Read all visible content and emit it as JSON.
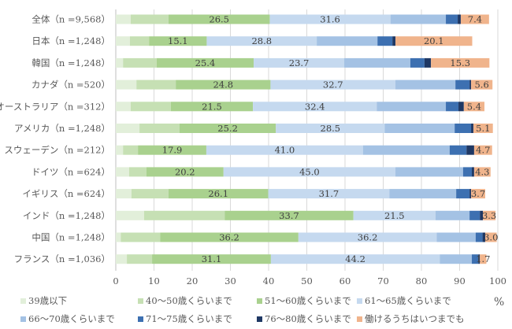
{
  "chart_data": {
    "type": "bar",
    "orientation": "horizontal",
    "stacked": true,
    "title": "",
    "xlabel": "",
    "unit_label": "%",
    "xlim": [
      0,
      100
    ],
    "x_ticks": [
      "0",
      "10",
      "20",
      "30",
      "40",
      "50",
      "60",
      "70",
      "80",
      "90",
      "100"
    ],
    "grid": true,
    "legend_position": "bottom",
    "categories": [
      "全体（n =9,568）",
      "日本（n =1,248）",
      "韓国（n =1,248）",
      "カナダ（n =520）",
      "オーストラリア（n =312）",
      "アメリカ（n =1,248）",
      "スウェーデン（n =212）",
      "ドイツ（n =624）",
      "イギリス（n =624）",
      "インド（n =1,248）",
      "中国（n =1,248）",
      "フランス（n =1,036）"
    ],
    "series": [
      {
        "name": "39歳以下",
        "color": "#e2efda",
        "values": [
          3.9,
          3.7,
          1.9,
          5.4,
          3.9,
          6.2,
          1.9,
          3.5,
          4.1,
          7.4,
          1.3,
          2.9
        ],
        "show_labels": false
      },
      {
        "name": "40～50歳くらいまで",
        "color": "#c6e0b4",
        "values": [
          9.9,
          5.0,
          8.8,
          10.3,
          10.5,
          10.5,
          3.9,
          4.5,
          9.7,
          21.1,
          10.3,
          6.6
        ],
        "show_labels": false
      },
      {
        "name": "51～60歳くらいまで",
        "color": "#a9d18e",
        "values": [
          26.5,
          15.1,
          25.4,
          24.8,
          21.5,
          25.2,
          17.9,
          20.2,
          26.1,
          33.7,
          36.2,
          31.1
        ],
        "show_labels": true
      },
      {
        "name": "61～65歳くらいまで",
        "color": "#c5d9ef",
        "values": [
          31.6,
          28.8,
          23.7,
          32.7,
          32.4,
          28.5,
          41.0,
          45.0,
          31.7,
          21.5,
          36.2,
          44.2
        ],
        "show_labels": true
      },
      {
        "name": "66～70歳くらいまで",
        "color": "#a4c2e4",
        "values": [
          14.5,
          15.9,
          17.3,
          15.7,
          18.1,
          18.3,
          22.7,
          17.7,
          17.5,
          8.9,
          10.2,
          8.4
        ],
        "show_labels": false
      },
      {
        "name": "71～75歳くらいまで",
        "color": "#3d70b1",
        "values": [
          3.1,
          3.9,
          3.7,
          3.7,
          3.3,
          4.3,
          4.4,
          2.3,
          3.5,
          2.7,
          1.8,
          1.7
        ],
        "show_labels": false
      },
      {
        "name": "76～80歳くらいまで",
        "color": "#1f3864",
        "values": [
          0.8,
          0.8,
          1.7,
          0.4,
          1.4,
          0.6,
          2.0,
          0.6,
          0.4,
          0.8,
          0.7,
          0.4
        ],
        "show_labels": false
      },
      {
        "name": "働けるうちはいつまでも",
        "color": "#f0b48c",
        "values": [
          7.4,
          20.1,
          15.3,
          5.6,
          5.4,
          5.1,
          4.7,
          4.3,
          3.7,
          3.3,
          3.0,
          1.7
        ],
        "show_labels": true
      }
    ],
    "data_labels": {
      "51～60歳くらいまで": [
        "26.5",
        "15.1",
        "25.4",
        "24.8",
        "21.5",
        "25.2",
        "17.9",
        "20.2",
        "26.1",
        "33.7",
        "36.2",
        "31.1"
      ],
      "61～65歳くらいまで": [
        "31.6",
        "28.8",
        "23.7",
        "32.7",
        "32.4",
        "28.5",
        "41.0",
        "45.0",
        "31.7",
        "21.5",
        "36.2",
        "44.2"
      ],
      "働けるうちはいつまでも": [
        "7.4",
        "20.1",
        "15.3",
        "5.6",
        "5.4",
        "5.1",
        "4.7",
        "4.3",
        "3.7",
        "3.3",
        "3.0",
        "1.7"
      ]
    }
  }
}
